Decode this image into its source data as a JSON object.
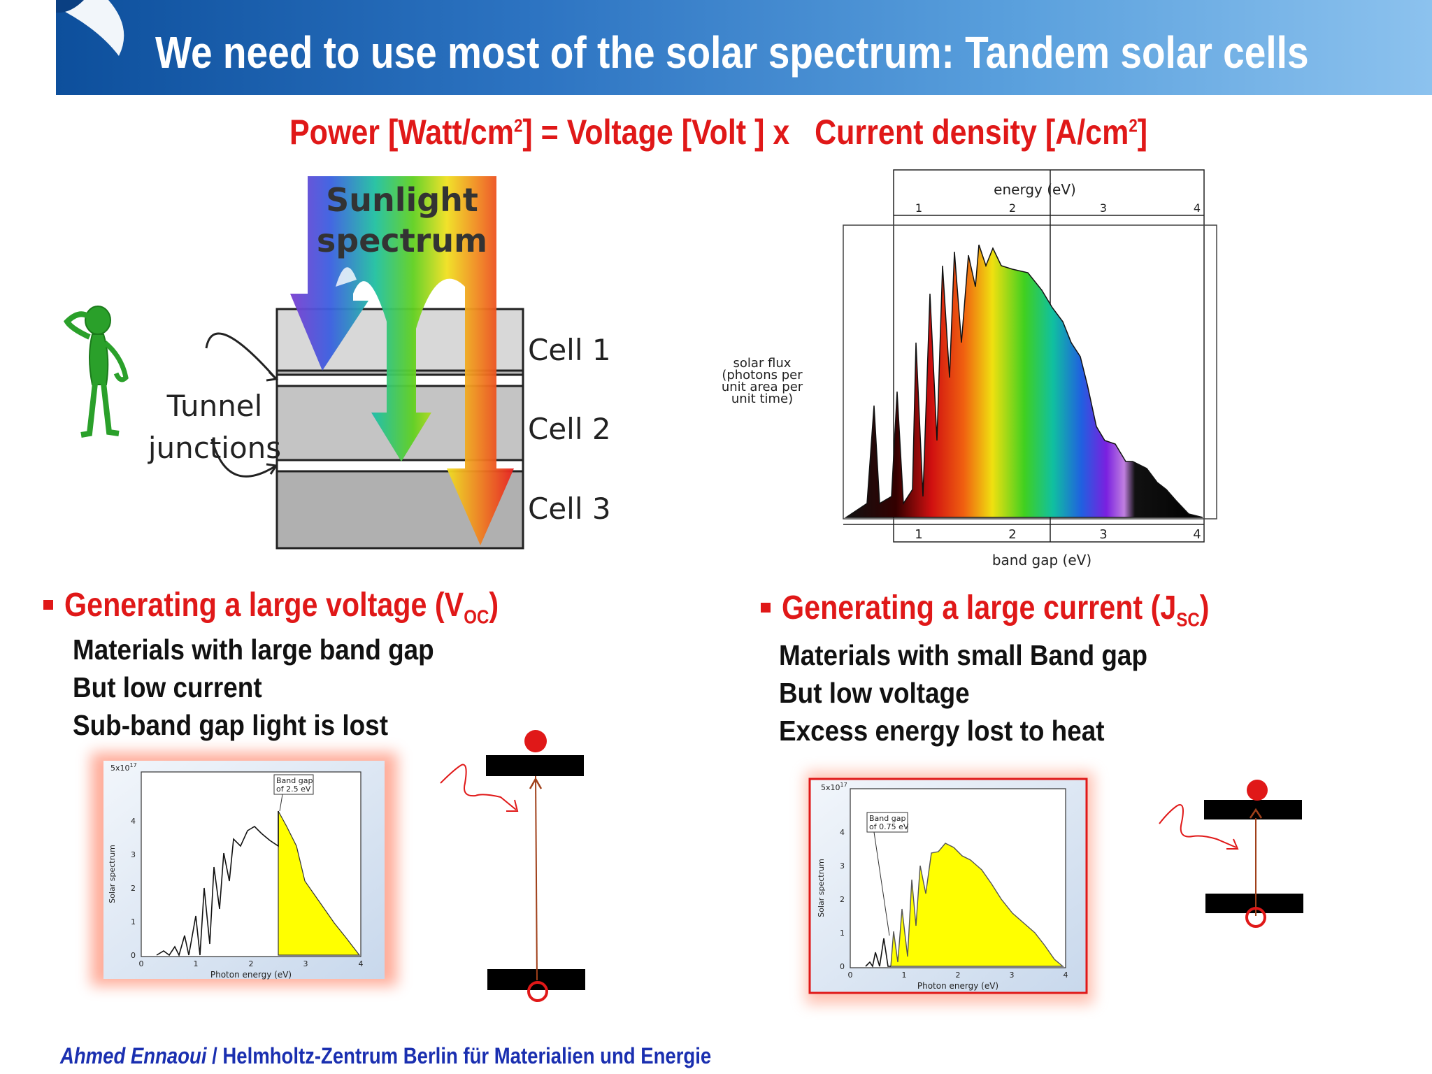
{
  "slide": {
    "title": "We need to use most of the solar spectrum: Tandem solar cells",
    "formula": {
      "power": "Power [Watt/cm",
      "sup1": "2",
      "eq": "] = Voltage [Volt ] x",
      "current": "Current density [A/cm",
      "sup2": "2",
      "close": "]"
    }
  },
  "diagram": {
    "sunlight_line1": "Sunlight",
    "sunlight_line2": "spectrum",
    "tunnel_line1": "Tunnel",
    "tunnel_line2": "junctions",
    "cells": [
      "Cell 1",
      "Cell 2",
      "Cell 3"
    ]
  },
  "spectrum_chart": {
    "top_axis_label": "energy (eV)",
    "bottom_axis_label": "band gap (eV)",
    "ylabel_lines": [
      "solar flux",
      "(photons per",
      "unit area per",
      "unit time)"
    ],
    "ticks": [
      "1",
      "2",
      "3",
      "4"
    ]
  },
  "left_section": {
    "heading": "Generating a large voltage (V",
    "heading_sub": "OC",
    "heading_close": ")",
    "lines": [
      "Materials with large band gap",
      "But low current",
      "Sub-band gap light is lost"
    ]
  },
  "right_section": {
    "heading": "Generating a large current (J",
    "heading_sub": "SC",
    "heading_close": ")",
    "lines": [
      "Materials with small Band gap",
      "But low voltage",
      "Excess energy lost to heat"
    ]
  },
  "small_chart_left": {
    "ymax_label": "5x10",
    "ymax_exp": "17",
    "annotation_line1": "Band gap",
    "annotation_line2": "of 2.5 eV",
    "ylabel": "Solar spectrum",
    "xlabel": "Photon energy (eV)",
    "xticks": [
      "0",
      "1",
      "2",
      "3",
      "4"
    ],
    "yticks": [
      "0",
      "1",
      "2",
      "3",
      "4"
    ]
  },
  "small_chart_right": {
    "ymax_label": "5x10",
    "ymax_exp": "17",
    "annotation_line1": "Band gap",
    "annotation_line2": "of 0.75 eV",
    "ylabel": "Solar spectrum",
    "xlabel": "Photon energy (eV)",
    "xticks": [
      "0",
      "1",
      "2",
      "3",
      "4"
    ],
    "yticks": [
      "0",
      "1",
      "2",
      "3",
      "4"
    ]
  },
  "footer": {
    "author": "Ahmed Ennaoui",
    "institution": "/ Helmholtz-Zentrum Berlin für Materialien und Energie"
  },
  "colors": {
    "accent_red": "#e01818",
    "header_blue": "#0d4f9c",
    "footer_blue": "#1a2fb0"
  }
}
